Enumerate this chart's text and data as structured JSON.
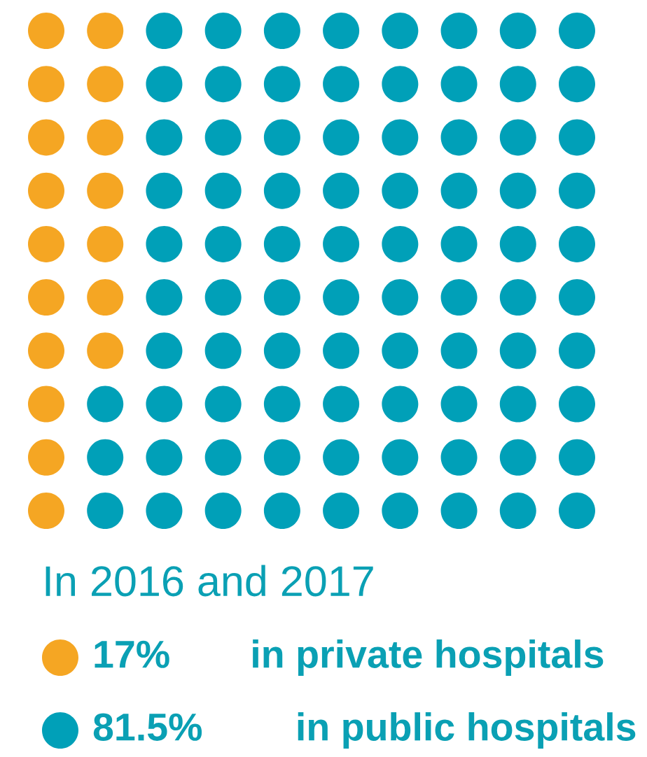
{
  "chart_data": {
    "type": "other",
    "subtitle": "In 2016 and 2017",
    "categories": [
      "in private hospitals",
      "in public hospitals"
    ],
    "values": [
      17,
      81.5
    ],
    "value_labels": [
      "17%",
      "81.5%"
    ],
    "colors": [
      "#f5a623",
      "#00a0b8"
    ]
  }
}
